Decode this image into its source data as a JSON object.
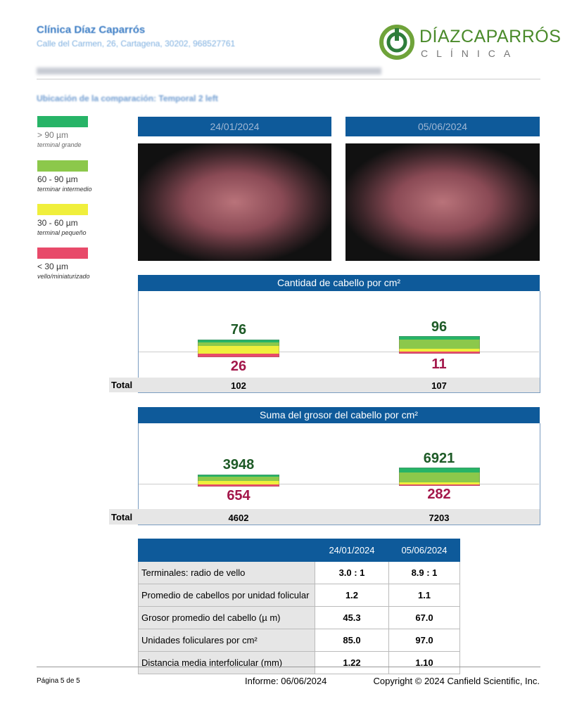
{
  "header": {
    "clinic_name": "Clínica Díaz Caparrós",
    "address": "Calle del Carmen, 26, Cartagena, 30202, 968527761",
    "logo_main": "DÍAZCAPARRÓS",
    "logo_sub": "CLÍNICA"
  },
  "comparison_location": "Ubicación de la comparación: Temporal 2 left",
  "legend": [
    {
      "range": "> 90 µm",
      "label": "terminal grande"
    },
    {
      "range": "60 - 90 µm",
      "label": "terminar intermedio"
    },
    {
      "range": "30 - 60 µm",
      "label": "terminal pequeño"
    },
    {
      "range": "< 30 µm",
      "label": "vello/miniaturizado"
    }
  ],
  "dates": [
    "24/01/2024",
    "05/06/2024"
  ],
  "sections": [
    {
      "title": "Cantidad de cabello por cm²",
      "upper": [
        "76",
        "96"
      ],
      "lower": [
        "26",
        "11"
      ],
      "total_label": "Total",
      "totals": [
        "102",
        "107"
      ]
    },
    {
      "title": "Suma del grosor del cabello por cm²",
      "upper": [
        "3948",
        "6921"
      ],
      "lower": [
        "654",
        "282"
      ],
      "total_label": "Total",
      "totals": [
        "4602",
        "7203"
      ]
    }
  ],
  "table": {
    "header": [
      "24/01/2024",
      "05/06/2024"
    ],
    "rows": [
      [
        "Terminales: radio de vello",
        "3.0 : 1",
        "8.9 : 1"
      ],
      [
        "Promedio de cabellos por unidad folicular",
        "1.2",
        "1.1"
      ],
      [
        "Grosor promedio del cabello (µ m)",
        "45.3",
        "67.0"
      ],
      [
        "Unidades foliculares por cm²",
        "85.0",
        "97.0"
      ],
      [
        "Distancia media interfolicular (mm)",
        "1.22",
        "1.10"
      ]
    ]
  },
  "footer": {
    "page": "Página 5 de 5",
    "report": "Informe: 06/06/2024",
    "copyright": "Copyright © 2024 Canfield Scientific, Inc."
  }
}
